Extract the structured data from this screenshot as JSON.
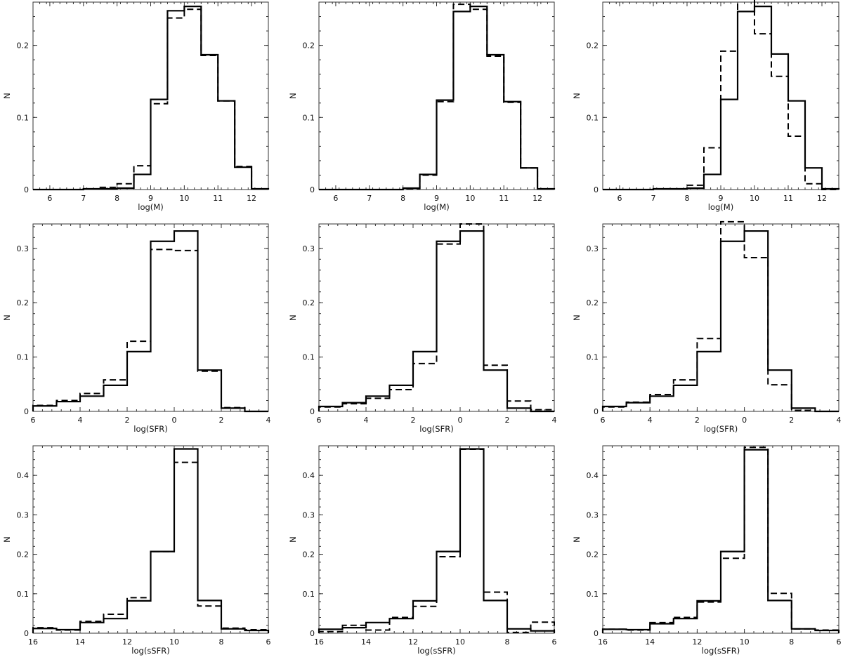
{
  "chart_data": [
    {
      "type": "histogram",
      "xlabel": "log(M)",
      "ylabel": "N",
      "xlim": [
        5.5,
        12.5
      ],
      "ylim": [
        0,
        0.26
      ],
      "xticks": [
        "6",
        "7",
        "8",
        "9",
        "10",
        "11",
        "12"
      ],
      "xtick_values": [
        6,
        7,
        8,
        9,
        10,
        11,
        12
      ],
      "yticks": [
        "0",
        "0.1",
        "0.2"
      ],
      "ytick_values": [
        0,
        0.1,
        0.2
      ],
      "bin_edges": [
        5.5,
        6,
        6.5,
        7,
        7.5,
        8,
        8.5,
        9,
        9.5,
        10,
        10.5,
        11,
        11.5,
        12,
        12.5
      ],
      "series": [
        {
          "style": "solid",
          "values": [
            0,
            0,
            0,
            0.001,
            0.001,
            0.002,
            0.021,
            0.125,
            0.248,
            0.254,
            0.187,
            0.123,
            0.031,
            0.001,
            0
          ]
        },
        {
          "style": "dashed",
          "values": [
            0,
            0,
            0,
            0.001,
            0.003,
            0.008,
            0.033,
            0.119,
            0.238,
            0.25,
            0.186,
            0.123,
            0.032,
            0.001,
            0
          ]
        }
      ]
    },
    {
      "type": "histogram",
      "xlabel": "log(M)",
      "ylabel": "N",
      "xlim": [
        5.5,
        12.5
      ],
      "ylim": [
        0,
        0.26
      ],
      "xticks": [
        "6",
        "7",
        "8",
        "9",
        "10",
        "11",
        "12"
      ],
      "xtick_values": [
        6,
        7,
        8,
        9,
        10,
        11,
        12
      ],
      "yticks": [
        "0",
        "0.1",
        "0.2"
      ],
      "ytick_values": [
        0,
        0.1,
        0.2
      ],
      "bin_edges": [
        5.5,
        6,
        6.5,
        7,
        7.5,
        8,
        8.5,
        9,
        9.5,
        10,
        10.5,
        11,
        11.5,
        12,
        12.5
      ],
      "series": [
        {
          "style": "solid",
          "values": [
            0,
            0,
            0,
            0,
            0,
            0.002,
            0.021,
            0.124,
            0.247,
            0.254,
            0.187,
            0.122,
            0.03,
            0.001,
            0
          ]
        },
        {
          "style": "dashed",
          "values": [
            0,
            0,
            0,
            0,
            0,
            0.001,
            0.02,
            0.122,
            0.257,
            0.25,
            0.185,
            0.121,
            0.03,
            0.001,
            0
          ]
        }
      ]
    },
    {
      "type": "histogram",
      "xlabel": "log(M)",
      "ylabel": "N",
      "xlim": [
        5.5,
        12.5
      ],
      "ylim": [
        0,
        0.26
      ],
      "xticks": [
        "6",
        "7",
        "8",
        "9",
        "10",
        "11",
        "12"
      ],
      "xtick_values": [
        6,
        7,
        8,
        9,
        10,
        11,
        12
      ],
      "yticks": [
        "0",
        "0.1",
        "0.2"
      ],
      "ytick_values": [
        0,
        0.1,
        0.2
      ],
      "bin_edges": [
        5.5,
        6,
        6.5,
        7,
        7.5,
        8,
        8.5,
        9,
        9.5,
        10,
        10.5,
        11,
        11.5,
        12,
        12.5
      ],
      "series": [
        {
          "style": "solid",
          "values": [
            0,
            0,
            0,
            0.001,
            0.001,
            0.002,
            0.021,
            0.125,
            0.247,
            0.254,
            0.188,
            0.123,
            0.03,
            0.001,
            0
          ]
        },
        {
          "style": "dashed",
          "values": [
            0,
            0,
            0,
            0.001,
            0.001,
            0.006,
            0.058,
            0.192,
            0.272,
            0.216,
            0.157,
            0.074,
            0.008,
            0,
            0
          ]
        }
      ]
    },
    {
      "type": "histogram",
      "xlabel": "log(SFR)",
      "ylabel": "N",
      "xlim": [
        -6,
        4
      ],
      "ylim": [
        0,
        0.345
      ],
      "xticks": [
        "6",
        "4",
        "2",
        "0",
        "2",
        "4"
      ],
      "xtick_values": [
        -6,
        -4,
        -2,
        0,
        2,
        4
      ],
      "yticks": [
        "0",
        "0.1",
        "0.2",
        "0.3"
      ],
      "ytick_values": [
        0,
        0.1,
        0.2,
        0.3
      ],
      "bin_edges": [
        -6,
        -5,
        -4,
        -3,
        -2,
        -1,
        0,
        1,
        2,
        3,
        4
      ],
      "series": [
        {
          "style": "solid",
          "values": [
            0.01,
            0.018,
            0.028,
            0.048,
            0.11,
            0.313,
            0.332,
            0.076,
            0.006,
            0
          ]
        },
        {
          "style": "dashed",
          "values": [
            0.011,
            0.02,
            0.033,
            0.058,
            0.129,
            0.298,
            0.296,
            0.074,
            0.007,
            0
          ]
        }
      ]
    },
    {
      "type": "histogram",
      "xlabel": "log(SFR)",
      "ylabel": "N",
      "xlim": [
        -6,
        4
      ],
      "ylim": [
        0,
        0.345
      ],
      "xticks": [
        "6",
        "4",
        "2",
        "0",
        "2",
        "4"
      ],
      "xtick_values": [
        -6,
        -4,
        -2,
        0,
        2,
        4
      ],
      "yticks": [
        "0",
        "0.1",
        "0.2",
        "0.3"
      ],
      "ytick_values": [
        0,
        0.1,
        0.2,
        0.3
      ],
      "bin_edges": [
        -6,
        -5,
        -4,
        -3,
        -2,
        -1,
        0,
        1,
        2,
        3,
        4
      ],
      "series": [
        {
          "style": "solid",
          "values": [
            0.009,
            0.016,
            0.028,
            0.048,
            0.11,
            0.313,
            0.332,
            0.076,
            0.006,
            0
          ]
        },
        {
          "style": "dashed",
          "values": [
            0.008,
            0.014,
            0.024,
            0.04,
            0.088,
            0.308,
            0.345,
            0.085,
            0.019,
            0.003
          ]
        }
      ]
    },
    {
      "type": "histogram",
      "xlabel": "log(SFR)",
      "ylabel": "N",
      "xlim": [
        -6,
        4
      ],
      "ylim": [
        0,
        0.345
      ],
      "xticks": [
        "6",
        "4",
        "2",
        "0",
        "2",
        "4"
      ],
      "xtick_values": [
        -6,
        -4,
        -2,
        0,
        2,
        4
      ],
      "yticks": [
        "0",
        "0.1",
        "0.2",
        "0.3"
      ],
      "ytick_values": [
        0,
        0.1,
        0.2,
        0.3
      ],
      "bin_edges": [
        -6,
        -5,
        -4,
        -3,
        -2,
        -1,
        0,
        1,
        2,
        3,
        4
      ],
      "series": [
        {
          "style": "solid",
          "values": [
            0.009,
            0.016,
            0.028,
            0.048,
            0.11,
            0.313,
            0.332,
            0.076,
            0.006,
            0
          ]
        },
        {
          "style": "dashed",
          "values": [
            0.008,
            0.017,
            0.031,
            0.058,
            0.134,
            0.349,
            0.283,
            0.049,
            0.002,
            0
          ]
        }
      ]
    },
    {
      "type": "histogram",
      "xlabel": "log(sSFR)",
      "ylabel": "N",
      "xlim": [
        -16,
        -6
      ],
      "ylim": [
        0,
        0.475
      ],
      "xticks": [
        "16",
        "14",
        "12",
        "10",
        "8",
        "6"
      ],
      "xtick_values": [
        -16,
        -14,
        -12,
        -10,
        -8,
        -6
      ],
      "yticks": [
        "0",
        "0.1",
        "0.2",
        "0.3",
        "0.4"
      ],
      "ytick_values": [
        0,
        0.1,
        0.2,
        0.3,
        0.4
      ],
      "bin_edges": [
        -16,
        -15,
        -14,
        -13,
        -12,
        -11,
        -10,
        -9,
        -8,
        -7,
        -6
      ],
      "series": [
        {
          "style": "solid",
          "values": [
            0.012,
            0.009,
            0.027,
            0.037,
            0.082,
            0.207,
            0.467,
            0.083,
            0.011,
            0.007
          ]
        },
        {
          "style": "dashed",
          "values": [
            0.014,
            0.008,
            0.03,
            0.048,
            0.09,
            0.207,
            0.433,
            0.069,
            0.013,
            0.009
          ]
        }
      ]
    },
    {
      "type": "histogram",
      "xlabel": "log(sSFR)",
      "ylabel": "N",
      "xlim": [
        -16,
        -6
      ],
      "ylim": [
        0,
        0.475
      ],
      "xticks": [
        "16",
        "14",
        "12",
        "10",
        "8",
        "6"
      ],
      "xtick_values": [
        -16,
        -14,
        -12,
        -10,
        -8,
        -6
      ],
      "yticks": [
        "0",
        "0.1",
        "0.2",
        "0.3",
        "0.4"
      ],
      "ytick_values": [
        0,
        0.1,
        0.2,
        0.3,
        0.4
      ],
      "bin_edges": [
        -16,
        -15,
        -14,
        -13,
        -12,
        -11,
        -10,
        -9,
        -8,
        -7,
        -6
      ],
      "series": [
        {
          "style": "solid",
          "values": [
            0.01,
            0.014,
            0.027,
            0.037,
            0.082,
            0.207,
            0.467,
            0.083,
            0.011,
            0.006
          ]
        },
        {
          "style": "dashed",
          "values": [
            0.004,
            0.02,
            0.008,
            0.04,
            0.068,
            0.194,
            0.466,
            0.104,
            0.002,
            0.028
          ]
        }
      ]
    },
    {
      "type": "histogram",
      "xlabel": "log(sSFR)",
      "ylabel": "N",
      "xlim": [
        -16,
        -6
      ],
      "ylim": [
        0,
        0.475
      ],
      "xticks": [
        "16",
        "14",
        "12",
        "10",
        "8",
        "6"
      ],
      "xtick_values": [
        -16,
        -14,
        -12,
        -10,
        -8,
        -6
      ],
      "yticks": [
        "0",
        "0.1",
        "0.2",
        "0.3",
        "0.4"
      ],
      "ytick_values": [
        0,
        0.1,
        0.2,
        0.3,
        0.4
      ],
      "bin_edges": [
        -16,
        -15,
        -14,
        -13,
        -12,
        -11,
        -10,
        -9,
        -8,
        -7,
        -6
      ],
      "series": [
        {
          "style": "solid",
          "values": [
            0.01,
            0.009,
            0.024,
            0.037,
            0.082,
            0.207,
            0.465,
            0.083,
            0.011,
            0.007
          ]
        },
        {
          "style": "dashed",
          "values": [
            0.01,
            0.008,
            0.027,
            0.04,
            0.079,
            0.19,
            0.471,
            0.101,
            0.011,
            0.008
          ]
        }
      ]
    }
  ]
}
